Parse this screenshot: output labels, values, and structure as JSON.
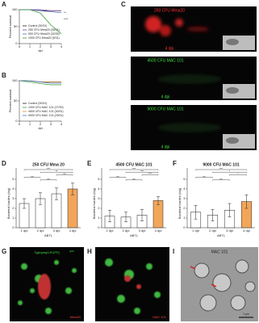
{
  "figure": {
    "panel_labels": [
      "A",
      "B",
      "C",
      "D",
      "E",
      "F",
      "G",
      "H",
      "I"
    ],
    "image_C": [
      {
        "title": "250 CFU Mma20",
        "time": "4 dpi"
      },
      {
        "title": "4500 CFU MAC 101",
        "time": "4 dpi"
      },
      {
        "title": "9000 CFU MAC 101",
        "time": "4 dpi"
      }
    ],
    "image_G": {
      "reporter": "Tg(mpeg1:EGFP)",
      "allele": "gl22",
      "strain": "Mma20"
    },
    "image_H": {
      "strain": "MAC 101"
    },
    "image_I": {
      "title": "MAC 101",
      "scale": "1 μm"
    }
  },
  "chart_data": [
    {
      "type": "line",
      "ylabel": "Percent survival",
      "xlabel": "dpi",
      "x": [
        0,
        1,
        2,
        3,
        4
      ],
      "xlim": [
        0,
        4
      ],
      "xticks": [
        0,
        1,
        2,
        3,
        4
      ],
      "ylim": [
        0,
        100
      ],
      "yticks": [
        0,
        50,
        100
      ],
      "series": [
        {
          "name": "Control (30/31)",
          "color": "#222222",
          "values": [
            100,
            100,
            97,
            97,
            97
          ]
        },
        {
          "name": "250 CFU Mma20 (30/31)",
          "color": "#7b3fa0",
          "values": [
            100,
            100,
            100,
            97,
            97
          ]
        },
        {
          "name": "500 CFU Mma20 (32/35)",
          "color": "#4f6fb0",
          "values": [
            100,
            100,
            97,
            94,
            91
          ]
        },
        {
          "name": "1000 CFU Mma20 (9/31)",
          "color": "#3a9a3a",
          "values": [
            100,
            100,
            90,
            55,
            29
          ]
        }
      ],
      "annotations": [
        "**",
        "****"
      ]
    },
    {
      "type": "line",
      "ylabel": "Percent survival",
      "xlabel": "dpi",
      "x": [
        0,
        1,
        2,
        3,
        4
      ],
      "xlim": [
        0,
        4
      ],
      "xticks": [
        0,
        1,
        2,
        3,
        4
      ],
      "ylim": [
        0,
        100
      ],
      "yticks": [
        0,
        50,
        100
      ],
      "series": [
        {
          "name": "Control (30/31)",
          "color": "#222222",
          "values": [
            100,
            100,
            97,
            97,
            97
          ]
        },
        {
          "name": "1000 CFU MAC 101 (27/30)",
          "color": "#3a9a3a",
          "values": [
            100,
            97,
            93,
            90,
            90
          ]
        },
        {
          "name": "4500 CFU MAC 101 (30/31)",
          "color": "#e08a2a",
          "values": [
            100,
            100,
            97,
            97,
            97
          ]
        },
        {
          "name": "9000 CFU MAC 101 (29/31)",
          "color": "#3f6fc0",
          "values": [
            100,
            100,
            97,
            94,
            94
          ]
        }
      ],
      "annotations": []
    },
    {
      "type": "bar",
      "title": "250 CFU Mma 20",
      "ylabel": "Bacterial burden (log)",
      "xlabel": "ABTL",
      "categories": [
        "1 dpi",
        "2 dpi",
        "3 dpi",
        "4 dpi"
      ],
      "values": [
        2.5,
        3.0,
        3.5,
        4.0
      ],
      "errors": [
        0.5,
        0.6,
        0.6,
        0.6
      ],
      "colors": [
        "#ffffff",
        "#ffffff",
        "#ffffff",
        "#f2a65a"
      ],
      "ylim": [
        0,
        5
      ],
      "yticks": [
        0,
        1,
        2,
        3,
        4,
        5
      ],
      "annotations": [
        "****",
        "**",
        "ns",
        "ns",
        "ns"
      ]
    },
    {
      "type": "bar",
      "title": "4500 CFU MAC 101",
      "ylabel": "Bacterial burden (log)",
      "xlabel": "ABTL",
      "categories": [
        "1 dpi",
        "2 dpi",
        "3 dpi",
        "4 dpi"
      ],
      "values": [
        1.2,
        1.1,
        1.3,
        2.8
      ],
      "errors": [
        0.6,
        0.5,
        0.6,
        0.4
      ],
      "colors": [
        "#ffffff",
        "#ffffff",
        "#ffffff",
        "#f2a65a"
      ],
      "ylim": [
        0,
        5
      ],
      "yticks": [
        0,
        1,
        2,
        3,
        4,
        5
      ],
      "annotations": [
        "****",
        "****",
        "****",
        "ns",
        "ns"
      ]
    },
    {
      "type": "bar",
      "title": "9000 CFU MAC 101",
      "ylabel": "Bacterial burden (log)",
      "xlabel": "ABTL",
      "categories": [
        "1 dpi",
        "2 dpi",
        "3 dpi",
        "4 dpi"
      ],
      "values": [
        1.6,
        1.3,
        1.8,
        2.7
      ],
      "errors": [
        0.7,
        0.6,
        0.7,
        0.7
      ],
      "colors": [
        "#ffffff",
        "#ffffff",
        "#ffffff",
        "#f2a65a"
      ],
      "ylim": [
        0,
        5
      ],
      "yticks": [
        0,
        1,
        2,
        3,
        4,
        5
      ],
      "annotations": [
        "****",
        "*",
        "*",
        "ns",
        "ns"
      ]
    }
  ]
}
